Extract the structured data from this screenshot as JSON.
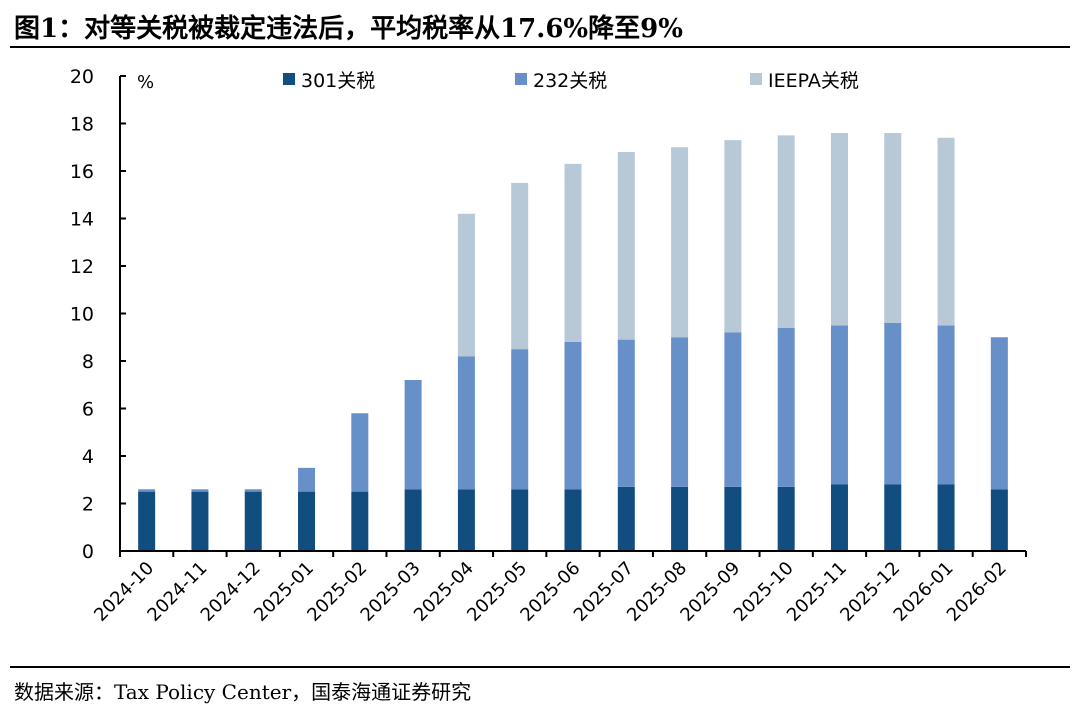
{
  "title": "图1：对等关税被裁定违法后，平均税率从17.6%降至9%",
  "source": "数据来源：Tax Policy Center，国泰海通证券研究",
  "chart_data": {
    "type": "bar",
    "stacked": true,
    "ylabel": "%",
    "ylim": [
      0,
      20
    ],
    "yticks": [
      0,
      2,
      4,
      6,
      8,
      10,
      12,
      14,
      16,
      18,
      20
    ],
    "legend_placement": "top",
    "categories": [
      "2024-10",
      "2024-11",
      "2024-12",
      "2025-01",
      "2025-02",
      "2025-03",
      "2025-04",
      "2025-05",
      "2025-06",
      "2025-07",
      "2025-08",
      "2025-09",
      "2025-10",
      "2025-11",
      "2025-12",
      "2026-01",
      "2026-02"
    ],
    "series": [
      {
        "name": "301关税",
        "color": "#124d80",
        "values": [
          2.5,
          2.5,
          2.5,
          2.5,
          2.5,
          2.6,
          2.6,
          2.6,
          2.6,
          2.7,
          2.7,
          2.7,
          2.7,
          2.8,
          2.8,
          2.8,
          2.6
        ]
      },
      {
        "name": "232关税",
        "color": "#6890c8",
        "values": [
          0.1,
          0.1,
          0.1,
          1.0,
          3.3,
          4.6,
          5.6,
          5.9,
          6.2,
          6.2,
          6.3,
          6.5,
          6.7,
          6.7,
          6.8,
          6.7,
          6.4
        ]
      },
      {
        "name": "IEEPA关税",
        "color": "#b7c9d6",
        "values": [
          0,
          0,
          0,
          0,
          0,
          0,
          6.0,
          7.0,
          7.5,
          7.9,
          8.0,
          8.1,
          8.1,
          8.1,
          8.0,
          7.9,
          0
        ]
      }
    ]
  }
}
